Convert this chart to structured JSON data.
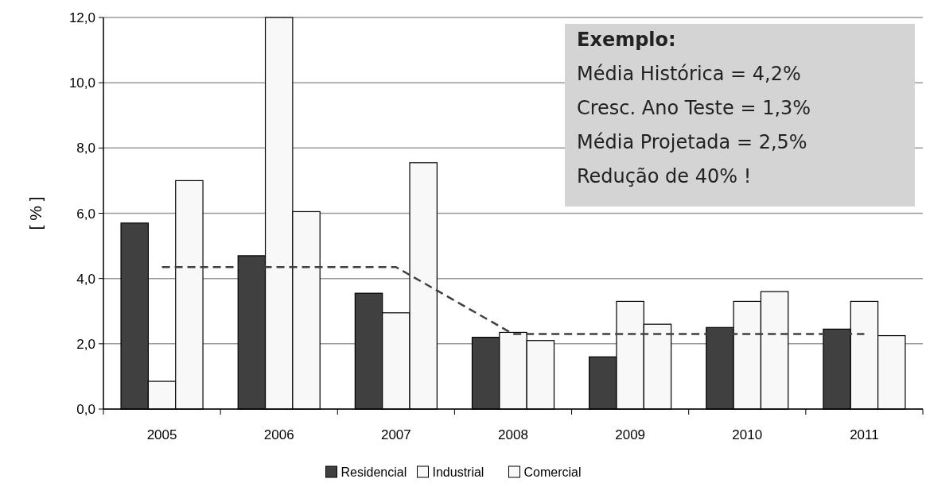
{
  "chart_data": {
    "type": "bar",
    "ylabel": "[ % ]",
    "categories": [
      "2005",
      "2006",
      "2007",
      "2008",
      "2009",
      "2010",
      "2011"
    ],
    "series": [
      {
        "name": "Residencial",
        "color": "#404040",
        "values": [
          5.7,
          4.7,
          3.55,
          2.2,
          1.6,
          2.5,
          2.45
        ]
      },
      {
        "name": "Industrial",
        "color": "#f8f8f8",
        "values": [
          0.85,
          12,
          2.95,
          2.35,
          3.3,
          3.3,
          3.3
        ]
      },
      {
        "name": "Comercial",
        "color": "#f8f8f8",
        "values": [
          7.0,
          6.05,
          7.55,
          2.1,
          2.6,
          3.6,
          2.25
        ]
      },
      {
        "type": "line",
        "color": "#404040",
        "line_style": "dashed",
        "values": [
          4.35,
          4.35,
          4.35,
          2.3,
          2.3,
          2.3,
          2.3
        ]
      }
    ],
    "ylim": [
      0,
      12
    ],
    "yticks": [
      {
        "value": 0,
        "label": "0,0"
      },
      {
        "value": 2,
        "label": "2,0"
      },
      {
        "value": 4,
        "label": "4,0"
      },
      {
        "value": 6,
        "label": "6,0"
      },
      {
        "value": 8,
        "label": "8,0"
      },
      {
        "value": 10,
        "label": "10,0"
      },
      {
        "value": 12,
        "label": "12,0"
      }
    ],
    "grid": "y",
    "legend": "bottom",
    "annotations": [
      "Exemplo:",
      "Média Histórica = 4,2%",
      "Cresc. Ano Teste = 1,3%",
      "Média Projetada = 2,5%",
      "Redução de 40% !"
    ]
  }
}
